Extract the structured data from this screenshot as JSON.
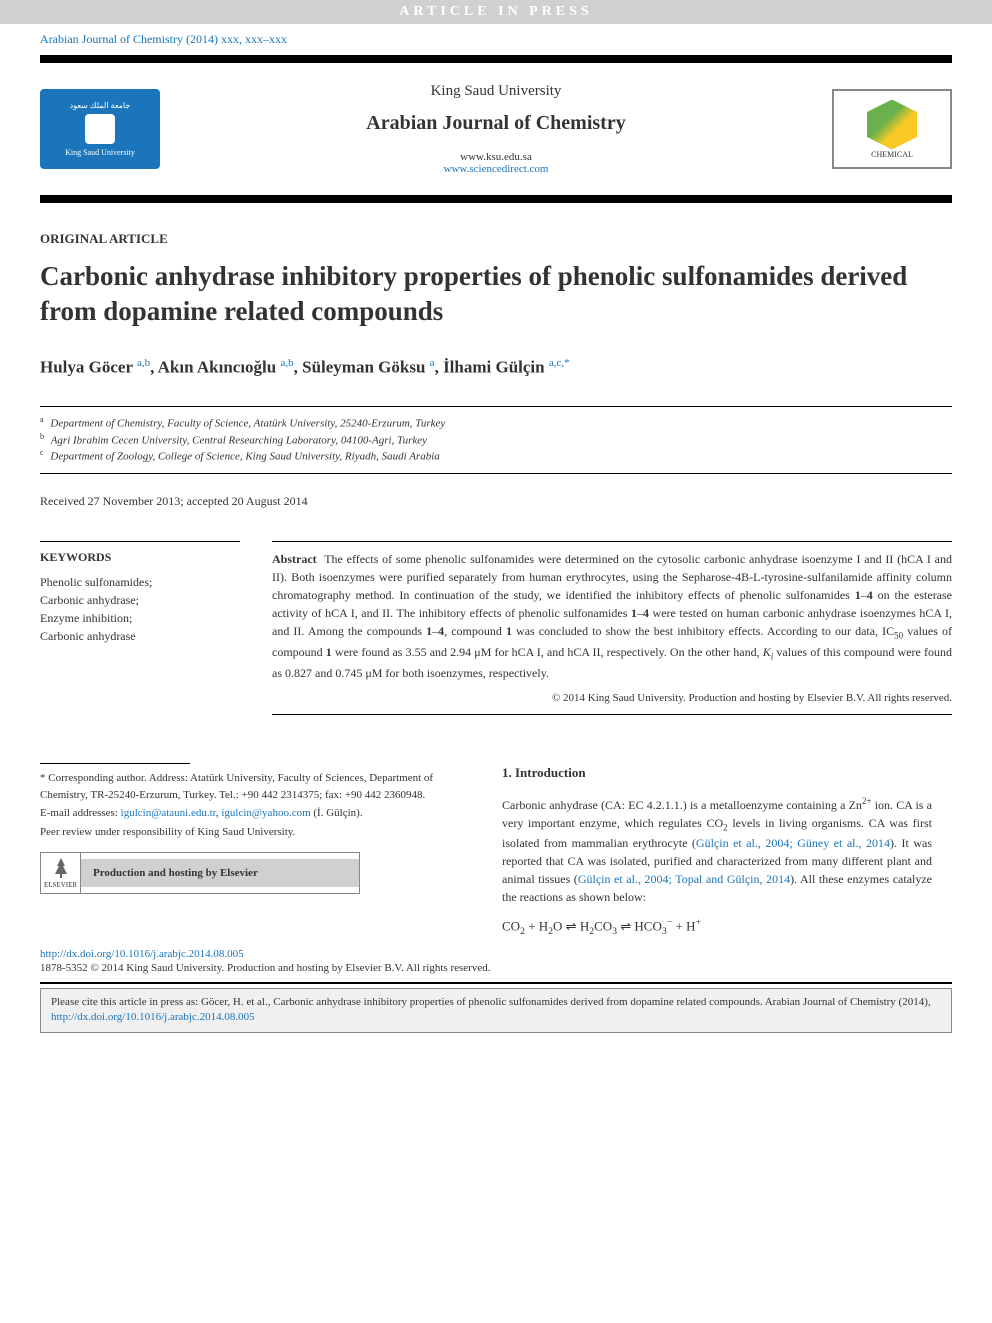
{
  "banner": "ARTICLE IN PRESS",
  "journal_ref": "Arabian Journal of Chemistry (2014) xxx, xxx–xxx",
  "header": {
    "university": "King Saud University",
    "journal": "Arabian Journal of Chemistry",
    "url1": "www.ksu.edu.sa",
    "url2": "www.sciencedirect.com",
    "left_logo_text_ar": "جامعة الملك سعود",
    "left_logo_text_en": "King Saud University",
    "right_logo_text": "CHEMICAL"
  },
  "article_type": "ORIGINAL ARTICLE",
  "title": "Carbonic anhydrase inhibitory properties of phenolic sulfonamides derived from dopamine related compounds",
  "authors_html": "Hulya Göcer <sup><a>a,b</a></sup>, Akın Akıncıoğlu <sup><a>a,b</a></sup>, Süleyman Göksu <sup><a>a</a></sup>, İlhami Gülçin <sup><a>a,c,*</a></sup>",
  "affiliations": [
    {
      "mark": "a",
      "text": "Department of Chemistry, Faculty of Science, Atatürk University, 25240-Erzurum, Turkey"
    },
    {
      "mark": "b",
      "text": "Agri Ibrahim Cecen University, Central Researching Laboratory, 04100-Agri, Turkey"
    },
    {
      "mark": "c",
      "text": "Department of Zoology, College of Science, King Saud University, Riyadh, Saudi Arabia"
    }
  ],
  "dates": "Received 27 November 2013; accepted 20 August 2014",
  "keywords_heading": "KEYWORDS",
  "keywords": "Phenolic sulfonamides;\nCarbonic anhydrase;\nEnzyme inhibition;\nCarbonic anhydrase",
  "abstract_label": "Abstract",
  "abstract_html": "The effects of some phenolic sulfonamides were determined on the cytosolic carbonic anhydrase isoenzyme I and II (hCA I and II). Both isoenzymes were purified separately from human erythrocytes, using the Sepharose-4B-L-tyrosine-sulfanilamide affinity column chromatography method. In continuation of the study, we identified the inhibitory effects of phenolic sulfonamides <b>1</b>–<b>4</b> on the esterase activity of hCA I, and II. The inhibitory effects of phenolic sulfonamides <b>1</b>–<b>4</b> were tested on human carbonic anhydrase isoenzymes hCA I, and II. Among the compounds <b>1</b>–<b>4</b>, compound <b>1</b> was concluded to show the best inhibitory effects. According to our data, IC<sub>50</sub> values of compound <b>1</b> were found as 3.55 and 2.94 μM for hCA I, and hCA II, respectively. On the other hand, <i>K<sub>i</sub></i> values of this compound were found as 0.827 and 0.745 μM for both isoenzymes, respectively.",
  "copyright": "© 2014 King Saud University. Production and hosting by Elsevier B.V. All rights reserved.",
  "footnotes": {
    "corresponding": "* Corresponding author. Address: Atatürk University, Faculty of Sciences, Department of Chemistry, TR-25240-Erzurum, Turkey. Tel.: +90 442 2314375; fax: +90 442 2360948.",
    "email_label": "E-mail addresses:",
    "email1": "igulcin@atauni.edu.tr",
    "email2": "igulcin@yahoo.com",
    "email_name": "(İ. Gülçin).",
    "peer": "Peer review under responsibility of King Saud University.",
    "elsevier_label": "ELSEVIER",
    "hosting": "Production and hosting by Elsevier"
  },
  "intro": {
    "heading": "1. Introduction",
    "body_html": "Carbonic anhydrase (CA: EC 4.2.1.1.) is a metalloenzyme containing a Zn<sup>2+</sup> ion. CA is a very important enzyme, which regulates CO<sub>2</sub> levels in living organisms. CA was first isolated from mammalian erythrocyte (<span class='cite-link'>Gülçin et al., 2004; Güney et al., 2014</span>). It was reported that CA was isolated, purified and characterized from many different plant and animal tissues (<span class='cite-link'>Gülçin et al., 2004; Topal and Gülçin, 2014</span>). All these enzymes catalyze the reactions as shown below:",
    "equation_html": "CO<sub>2</sub> + H<sub>2</sub>O ⇌ H<sub>2</sub>CO<sub>3</sub> ⇌ HCO<sub>3</sub><sup>−</sup> + H<sup>+</sup>"
  },
  "doi": "http://dx.doi.org/10.1016/j.arabjc.2014.08.005",
  "issn": "1878-5352 © 2014 King Saud University. Production and hosting by Elsevier B.V. All rights reserved.",
  "cite_box_html": "Please cite this article in press as: Göcer, H. et al., Carbonic anhydrase inhibitory properties of phenolic sulfonamides derived from dopamine related compounds. Arabian Journal of Chemistry (2014), <a>http://dx.doi.org/10.1016/j.arabjc.2014.08.005</a>",
  "colors": {
    "link": "#1a75bb",
    "banner_bg": "#d0d0d0",
    "ksu_bg": "#1a75bb"
  }
}
